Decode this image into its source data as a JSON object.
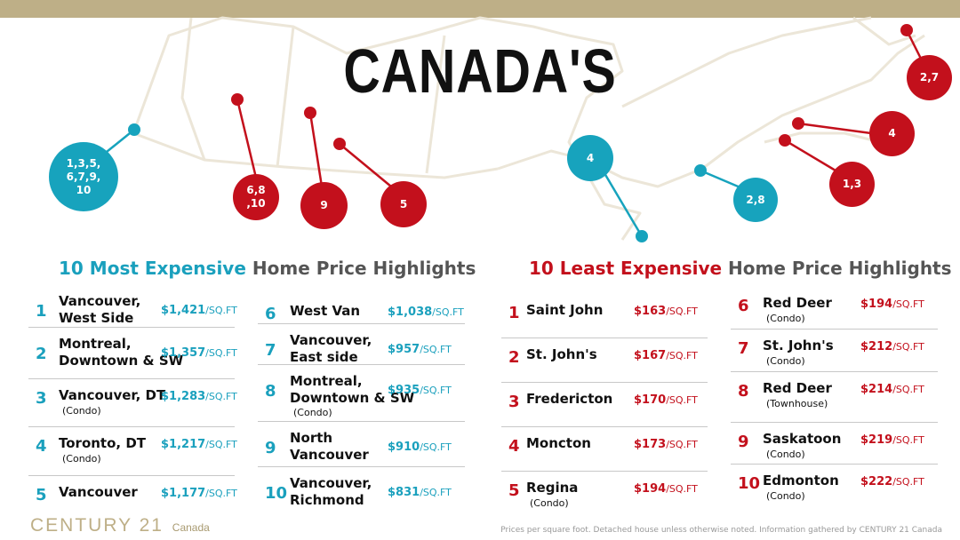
{
  "title": "CANADA'S",
  "map_markers": [
    {
      "label": "1,3,5,\n6,7,9,\n10",
      "color": "blue"
    },
    {
      "label": "6,8\n,10",
      "color": "red"
    },
    {
      "label": "9",
      "color": "red"
    },
    {
      "label": "5",
      "color": "red"
    },
    {
      "label": "4",
      "color": "blue"
    },
    {
      "label": "2,8",
      "color": "blue"
    },
    {
      "label": "1,3",
      "color": "red"
    },
    {
      "label": "4",
      "color": "red"
    },
    {
      "label": "2,7",
      "color": "red"
    }
  ],
  "most_expensive": {
    "title_accent": "10 Most Expensive",
    "title_rest": " Home Price Highlights",
    "unit": "/SQ.FT",
    "items": [
      {
        "rank": "1",
        "name": "Vancouver,\nWest Side",
        "note": "",
        "price": "$1,421"
      },
      {
        "rank": "2",
        "name": "Montreal,\nDowntown & SW",
        "note": "",
        "price": "$1,357"
      },
      {
        "rank": "3",
        "name": "Vancouver, DT",
        "note": "(Condo)",
        "price": "$1,283"
      },
      {
        "rank": "4",
        "name": "Toronto, DT",
        "note": "(Condo)",
        "price": "$1,217"
      },
      {
        "rank": "5",
        "name": "Vancouver",
        "note": "",
        "price": "$1,177"
      },
      {
        "rank": "6",
        "name": "West Van",
        "note": "",
        "price": "$1,038"
      },
      {
        "rank": "7",
        "name": "Vancouver,\nEast side",
        "note": "",
        "price": "$957"
      },
      {
        "rank": "8",
        "name": "Montreal,\nDowntown & SW",
        "note": "(Condo)",
        "price": "$935"
      },
      {
        "rank": "9",
        "name": "North\nVancouver",
        "note": "",
        "price": "$910"
      },
      {
        "rank": "10",
        "name": "Vancouver,\nRichmond",
        "note": "",
        "price": "$831"
      }
    ]
  },
  "least_expensive": {
    "title_accent": "10 Least Expensive",
    "title_rest": " Home Price Highlights",
    "unit": "/SQ.FT",
    "items": [
      {
        "rank": "1",
        "name": "Saint John",
        "note": "",
        "price": "$163"
      },
      {
        "rank": "2",
        "name": "St. John's",
        "note": "",
        "price": "$167"
      },
      {
        "rank": "3",
        "name": "Fredericton",
        "note": "",
        "price": "$170"
      },
      {
        "rank": "4",
        "name": "Moncton",
        "note": "",
        "price": "$173"
      },
      {
        "rank": "5",
        "name": "Regina",
        "note": "(Condo)",
        "price": "$194"
      },
      {
        "rank": "6",
        "name": "Red Deer",
        "note": "(Condo)",
        "price": "$194"
      },
      {
        "rank": "7",
        "name": "St. John's",
        "note": "(Condo)",
        "price": "$212"
      },
      {
        "rank": "8",
        "name": "Red Deer",
        "note": "(Townhouse)",
        "price": "$214"
      },
      {
        "rank": "9",
        "name": "Saskatoon",
        "note": "(Condo)",
        "price": "$219"
      },
      {
        "rank": "10",
        "name": "Edmonton",
        "note": "(Condo)",
        "price": "$222"
      }
    ]
  },
  "brand": {
    "name": "CENTURY 21",
    "sub": "Canada"
  },
  "footnote": "Prices per square foot. Detached house unless otherwise noted. Information gathered by CENTURY 21 Canada",
  "colors": {
    "blue": "#17a3bd",
    "red": "#c3101c",
    "gold": "#beaf87"
  }
}
